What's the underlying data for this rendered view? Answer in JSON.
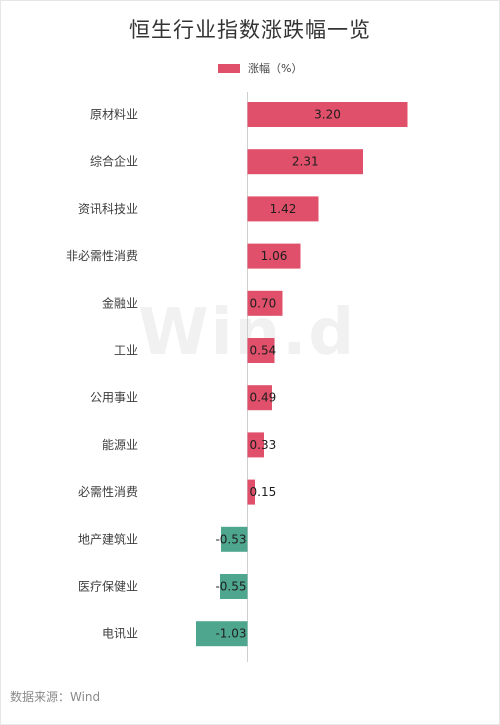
{
  "title": "恒生行业指数涨跌幅一览",
  "legend": {
    "label": "涨幅（%）",
    "color": "#e0506a"
  },
  "watermark": "Win.d",
  "source": "数据来源：Wind",
  "colors": {
    "positive": "#e0506a",
    "negative": "#4fa68f",
    "axis": "#cfcfcf",
    "text": "#3d3d3d"
  },
  "chart_data": {
    "type": "bar",
    "orientation": "horizontal",
    "title": "恒生行业指数涨跌幅一览",
    "categories": [
      "原材料业",
      "综合企业",
      "资讯科技业",
      "非必需性消费",
      "金融业",
      "工业",
      "公用事业",
      "能源业",
      "必需性消费",
      "地产建筑业",
      "医疗保健业",
      "电讯业"
    ],
    "series": [
      {
        "name": "涨幅（%）",
        "values": [
          3.2,
          2.31,
          1.42,
          1.06,
          0.7,
          0.54,
          0.49,
          0.33,
          0.15,
          -0.53,
          -0.55,
          -1.03
        ]
      }
    ],
    "data_labels": [
      "3.20",
      "2.31",
      "1.42",
      "1.06",
      "0.70",
      "0.54",
      "0.49",
      "0.33",
      "0.15",
      "-0.53",
      "-0.55",
      "-1.03"
    ],
    "legend_position": "top-center",
    "grid": false
  }
}
